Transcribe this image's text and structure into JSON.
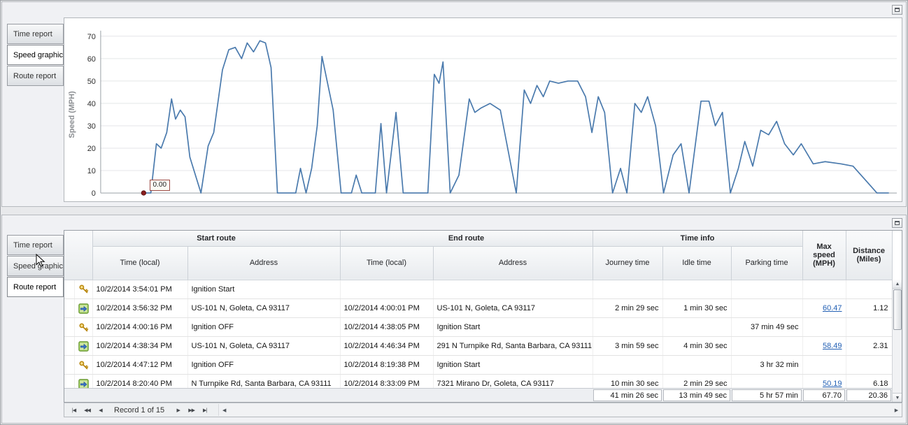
{
  "top_panel": {
    "tabs": [
      {
        "label": "Time report",
        "selected": false
      },
      {
        "label": "Speed graphic",
        "selected": true
      },
      {
        "label": "Route report",
        "selected": false
      }
    ]
  },
  "bottom_panel": {
    "tabs": [
      {
        "label": "Time report",
        "selected": false
      },
      {
        "label": "Speed graphic",
        "selected": false
      },
      {
        "label": "Route report",
        "selected": true
      }
    ]
  },
  "chart_data": {
    "type": "line",
    "title": "",
    "xlabel": "",
    "ylabel": "Speed (MPH)",
    "ylim": [
      0,
      70
    ],
    "yticks": [
      0,
      10,
      20,
      30,
      40,
      50,
      60,
      70
    ],
    "grid": true,
    "legend": false,
    "line_color": "#4a7aad",
    "start_marker": {
      "x_pct": 5.4,
      "value": 0,
      "label": "0.00",
      "color": "#8b1e1e"
    },
    "points_pct_mph": [
      [
        5.4,
        0
      ],
      [
        6.3,
        0
      ],
      [
        7.0,
        22
      ],
      [
        7.6,
        20
      ],
      [
        8.3,
        27
      ],
      [
        8.9,
        42
      ],
      [
        9.4,
        33
      ],
      [
        10.0,
        37
      ],
      [
        10.6,
        34
      ],
      [
        11.2,
        16
      ],
      [
        12.6,
        0
      ],
      [
        13.5,
        21
      ],
      [
        14.2,
        27
      ],
      [
        15.3,
        55
      ],
      [
        16.1,
        64
      ],
      [
        16.9,
        65
      ],
      [
        17.7,
        60
      ],
      [
        18.4,
        67
      ],
      [
        19.2,
        63
      ],
      [
        20.0,
        68
      ],
      [
        20.7,
        67
      ],
      [
        21.4,
        56
      ],
      [
        22.2,
        0
      ],
      [
        24.5,
        0
      ],
      [
        25.1,
        11
      ],
      [
        25.8,
        0
      ],
      [
        26.5,
        11
      ],
      [
        27.2,
        30
      ],
      [
        27.8,
        61
      ],
      [
        28.5,
        49
      ],
      [
        29.2,
        37
      ],
      [
        30.2,
        0
      ],
      [
        31.5,
        0
      ],
      [
        32.1,
        8
      ],
      [
        32.8,
        0
      ],
      [
        34.5,
        0
      ],
      [
        35.2,
        31
      ],
      [
        35.9,
        0
      ],
      [
        37.1,
        36
      ],
      [
        38.0,
        0
      ],
      [
        41.1,
        0
      ],
      [
        41.9,
        53
      ],
      [
        42.5,
        49
      ],
      [
        43.0,
        58.5
      ],
      [
        43.9,
        0
      ],
      [
        45.0,
        8
      ],
      [
        46.3,
        42
      ],
      [
        47.0,
        36
      ],
      [
        47.8,
        38
      ],
      [
        48.9,
        40
      ],
      [
        50.2,
        37
      ],
      [
        52.2,
        0
      ],
      [
        53.2,
        46
      ],
      [
        54.0,
        40
      ],
      [
        54.8,
        48
      ],
      [
        55.6,
        43
      ],
      [
        56.4,
        50
      ],
      [
        57.5,
        49
      ],
      [
        58.7,
        50
      ],
      [
        59.9,
        50
      ],
      [
        60.9,
        43
      ],
      [
        61.7,
        27
      ],
      [
        62.5,
        43
      ],
      [
        63.3,
        36
      ],
      [
        64.3,
        0
      ],
      [
        65.3,
        11
      ],
      [
        66.1,
        0
      ],
      [
        67.1,
        40
      ],
      [
        67.9,
        36
      ],
      [
        68.7,
        43
      ],
      [
        69.7,
        30
      ],
      [
        70.7,
        0
      ],
      [
        71.9,
        17
      ],
      [
        72.9,
        22
      ],
      [
        73.9,
        0
      ],
      [
        75.4,
        41
      ],
      [
        76.4,
        41
      ],
      [
        77.2,
        30
      ],
      [
        78.1,
        36
      ],
      [
        79.1,
        0
      ],
      [
        80.1,
        11
      ],
      [
        80.9,
        23
      ],
      [
        81.9,
        12
      ],
      [
        82.9,
        28
      ],
      [
        83.9,
        26
      ],
      [
        84.9,
        32
      ],
      [
        85.9,
        22
      ],
      [
        87.0,
        17
      ],
      [
        88.0,
        22
      ],
      [
        89.5,
        13
      ],
      [
        91.0,
        14
      ],
      [
        93.0,
        13
      ],
      [
        94.5,
        12
      ],
      [
        96.0,
        6
      ],
      [
        97.5,
        0
      ],
      [
        99.0,
        0
      ]
    ]
  },
  "table": {
    "groups": {
      "start": "Start route",
      "end": "End route",
      "time": "Time info"
    },
    "columns": {
      "time_local": "Time (local)",
      "address": "Address",
      "journey": "Journey time",
      "idle": "Idle time",
      "parking": "Parking time",
      "max_speed": "Max speed (MPH)",
      "distance": "Distance (Miles)"
    },
    "rows": [
      {
        "icon": "key",
        "start_time": "10/2/2014 3:54:01 PM",
        "start_address": "Ignition Start",
        "end_time": "",
        "end_address": "",
        "journey_time": "",
        "idle_time": "",
        "parking_time": "",
        "max_speed": "",
        "max_speed_link": false,
        "distance": ""
      },
      {
        "icon": "route",
        "start_time": "10/2/2014 3:56:32 PM",
        "start_address": "US-101 N, Goleta, CA 93117",
        "end_time": "10/2/2014 4:00:01 PM",
        "end_address": "US-101 N, Goleta, CA 93117",
        "journey_time": "2 min 29 sec",
        "idle_time": "1 min 30 sec",
        "parking_time": "",
        "max_speed": "60.47",
        "max_speed_link": true,
        "distance": "1.12"
      },
      {
        "icon": "key",
        "start_time": "10/2/2014 4:00:16 PM",
        "start_address": "Ignition OFF",
        "end_time": "10/2/2014 4:38:05 PM",
        "end_address": "Ignition Start",
        "journey_time": "",
        "idle_time": "",
        "parking_time": "37 min 49 sec",
        "max_speed": "",
        "max_speed_link": false,
        "distance": ""
      },
      {
        "icon": "route",
        "start_time": "10/2/2014 4:38:34 PM",
        "start_address": "US-101 N, Goleta, CA 93117",
        "end_time": "10/2/2014 4:46:34 PM",
        "end_address": "291 N Turnpike Rd, Santa Barbara, CA 93111",
        "journey_time": "3 min 59 sec",
        "idle_time": "4 min 30 sec",
        "parking_time": "",
        "max_speed": "58.49",
        "max_speed_link": true,
        "distance": "2.31"
      },
      {
        "icon": "key",
        "start_time": "10/2/2014 4:47:12 PM",
        "start_address": "Ignition OFF",
        "end_time": "10/2/2014 8:19:38 PM",
        "end_address": "Ignition Start",
        "journey_time": "",
        "idle_time": "",
        "parking_time": "3 hr 32 min",
        "max_speed": "",
        "max_speed_link": false,
        "distance": ""
      },
      {
        "icon": "route",
        "start_time": "10/2/2014 8:20:40 PM",
        "start_address": "N Turnpike Rd, Santa Barbara, CA 93111",
        "end_time": "10/2/2014 8:33:09 PM",
        "end_address": "7321 Mirano Dr, Goleta, CA 93117",
        "journey_time": "10 min 30 sec",
        "idle_time": "2 min 29 sec",
        "parking_time": "",
        "max_speed": "50.19",
        "max_speed_link": true,
        "distance": "6.18"
      }
    ],
    "footer": {
      "journey": "41 min 26 sec",
      "idle": "13 min 49 sec",
      "parking": "5 hr 57 min",
      "max_speed": "67.70",
      "distance": "20.36"
    }
  },
  "navigator": {
    "record_text": "Record 1 of 15",
    "buttons": {
      "first": "|◀",
      "prev_page": "◀◀",
      "prev": "◀",
      "next": "▶",
      "next_page": "▶▶",
      "last": "▶|"
    }
  },
  "icons": {
    "scroll_up": "▲",
    "scroll_down": "▼",
    "scroll_left": "◀",
    "scroll_right": "▶"
  }
}
